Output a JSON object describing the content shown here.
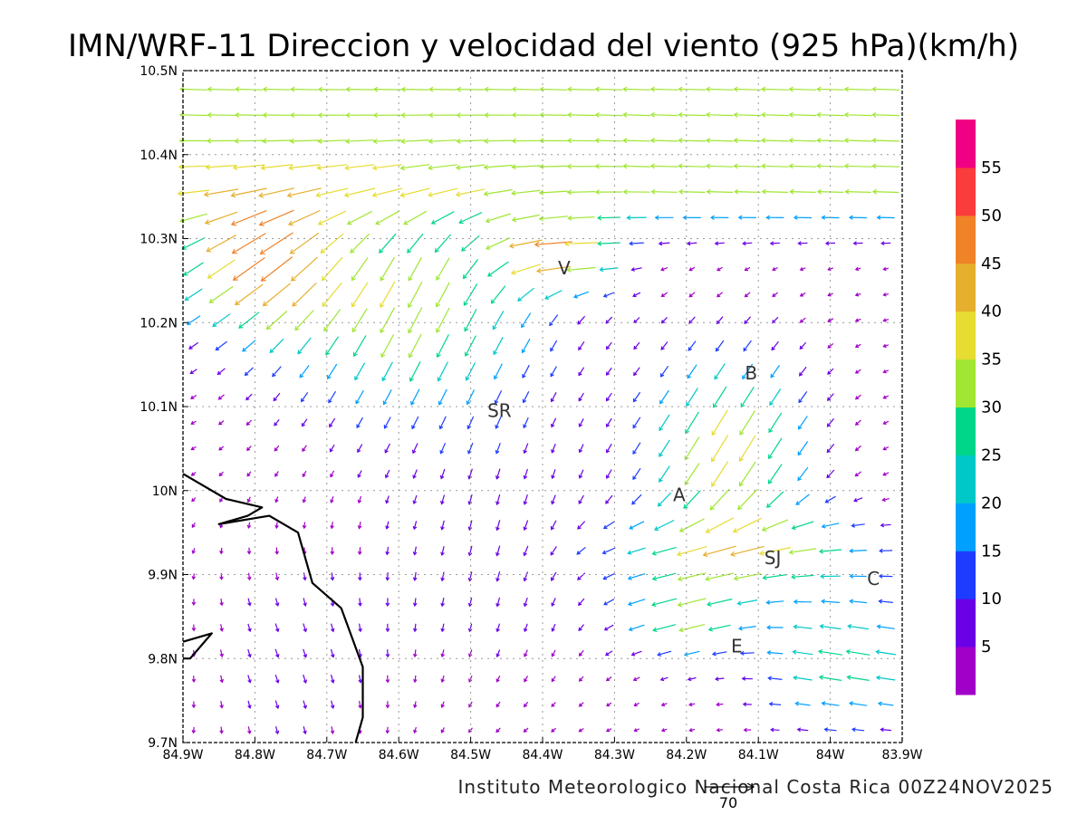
{
  "title": "IMN/WRF-11 Direccion y velocidad del viento (925 hPa)(km/h)",
  "footer": "Instituto Meteorologico Nacional Costa Rica 00Z24NOV2025",
  "reference_vector_label": "70",
  "map": {
    "lon_range": [
      -84.9,
      -83.9
    ],
    "lat_range": [
      9.7,
      10.5
    ],
    "x_ticks": [
      "84.9W",
      "84.8W",
      "84.7W",
      "84.6W",
      "84.5W",
      "84.4W",
      "84.3W",
      "84.2W",
      "84.1W",
      "84W",
      "83.9W"
    ],
    "y_ticks": [
      "9.7N",
      "9.8N",
      "9.9N",
      "10N",
      "10.1N",
      "10.2N",
      "10.3N",
      "10.4N",
      "10.5N"
    ],
    "gridlines": true,
    "coastline": [
      [
        [
          -84.9,
          10.02
        ],
        [
          -84.84,
          9.99
        ],
        [
          -84.79,
          9.98
        ],
        [
          -84.81,
          9.97
        ],
        [
          -84.85,
          9.96
        ],
        [
          -84.78,
          9.97
        ],
        [
          -84.74,
          9.95
        ],
        [
          -84.72,
          9.89
        ],
        [
          -84.68,
          9.86
        ],
        [
          -84.65,
          9.79
        ],
        [
          -84.65,
          9.73
        ],
        [
          -84.66,
          9.7
        ]
      ],
      [
        [
          -84.9,
          9.82
        ],
        [
          -84.86,
          9.83
        ],
        [
          -84.89,
          9.8
        ],
        [
          -84.9,
          9.8
        ]
      ]
    ]
  },
  "colorbar": {
    "colors": [
      "#a000c8",
      "#6a00e6",
      "#1e3cff",
      "#00a0ff",
      "#00c8c8",
      "#00d68a",
      "#a0e632",
      "#e6dc32",
      "#e6af2d",
      "#f08228",
      "#fa3c3c",
      "#f00082"
    ],
    "labels": [
      "5",
      "10",
      "15",
      "20",
      "25",
      "30",
      "35",
      "40",
      "45",
      "50",
      "55"
    ]
  },
  "cities": [
    {
      "label": "V",
      "lon": -84.37,
      "lat": 10.265
    },
    {
      "label": "B",
      "lon": -84.11,
      "lat": 10.14
    },
    {
      "label": "SR",
      "lon": -84.46,
      "lat": 10.095
    },
    {
      "label": "A",
      "lon": -84.21,
      "lat": 9.995
    },
    {
      "label": "SJ",
      "lon": -84.08,
      "lat": 9.92
    },
    {
      "label": "C",
      "lon": -83.94,
      "lat": 9.895
    },
    {
      "label": "E",
      "lon": -84.13,
      "lat": 9.815
    }
  ]
}
